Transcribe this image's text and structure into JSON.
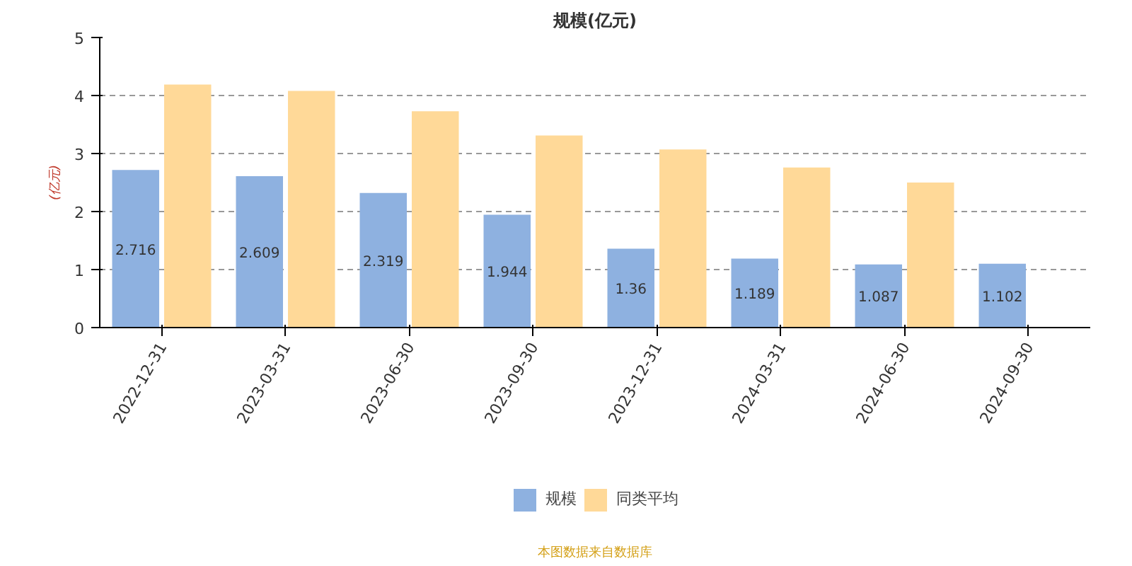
{
  "chart_data": {
    "type": "bar",
    "title": "规模(亿元)",
    "ylabel": "(亿元)",
    "categories": [
      "2022-12-31",
      "2023-03-31",
      "2023-06-30",
      "2023-09-30",
      "2023-12-31",
      "2024-03-31",
      "2024-06-30",
      "2024-09-30"
    ],
    "series": [
      {
        "name": "规模",
        "color": "#8eb1e0",
        "values": [
          2.716,
          2.609,
          2.319,
          1.944,
          1.36,
          1.189,
          1.087,
          1.102
        ],
        "value_labels": [
          "2.716",
          "2.609",
          "2.319",
          "1.944",
          "1.36",
          "1.189",
          "1.087",
          "1.102"
        ]
      },
      {
        "name": "同类平均",
        "color": "#ffd998",
        "values": [
          4.19,
          4.08,
          3.73,
          3.31,
          3.07,
          2.76,
          2.5,
          null
        ]
      }
    ],
    "ylim": [
      0,
      5
    ],
    "yticks": [
      0,
      1,
      2,
      3,
      4,
      5
    ],
    "grid": "y",
    "legend": "bottom",
    "annotations": [
      "本图数据来自数据库"
    ]
  }
}
